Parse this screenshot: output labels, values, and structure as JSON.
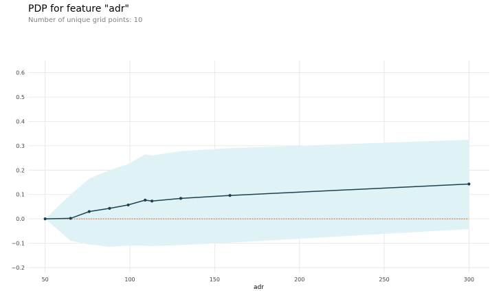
{
  "header": {
    "title": "PDP for feature \"adr\"",
    "subtitle": "Number of unique grid points: 10"
  },
  "chart_data": {
    "type": "line",
    "title": "PDP for feature \"adr\"",
    "subtitle": "Number of unique grid points: 10",
    "xlabel": "adr",
    "ylabel": "",
    "xlim": [
      40,
      312
    ],
    "ylim": [
      -0.22,
      0.65
    ],
    "xticks": [
      50,
      100,
      150,
      200,
      250,
      300
    ],
    "yticks": [
      -0.2,
      -0.1,
      0.0,
      0.1,
      0.2,
      0.3,
      0.4,
      0.5,
      0.6
    ],
    "ytick_labels": [
      "−0.2",
      "−0.1",
      "0.0",
      "0.1",
      "0.2",
      "0.3",
      "0.4",
      "0.5",
      "0.6"
    ],
    "grid": true,
    "series": [
      {
        "x": [
          50,
          65,
          76,
          88,
          99,
          109,
          113,
          130,
          159,
          300
        ],
        "y": [
          0.0,
          0.002,
          0.03,
          0.043,
          0.057,
          0.077,
          0.073,
          0.084,
          0.096,
          0.143
        ]
      }
    ],
    "band": {
      "x": [
        50,
        65,
        76,
        88,
        99,
        109,
        113,
        130,
        159,
        300
      ],
      "upper": [
        0.0,
        0.1,
        0.165,
        0.2,
        0.225,
        0.265,
        0.26,
        0.278,
        0.29,
        0.325
      ],
      "lower": [
        0.0,
        -0.09,
        -0.105,
        -0.115,
        -0.11,
        -0.11,
        -0.112,
        -0.108,
        -0.098,
        -0.042
      ]
    },
    "baseline": 0.0,
    "colors": {
      "line": "#1a4150",
      "band": "#dff2f6",
      "baseline": "#c0612b",
      "grid": "#e3e3e3"
    }
  }
}
